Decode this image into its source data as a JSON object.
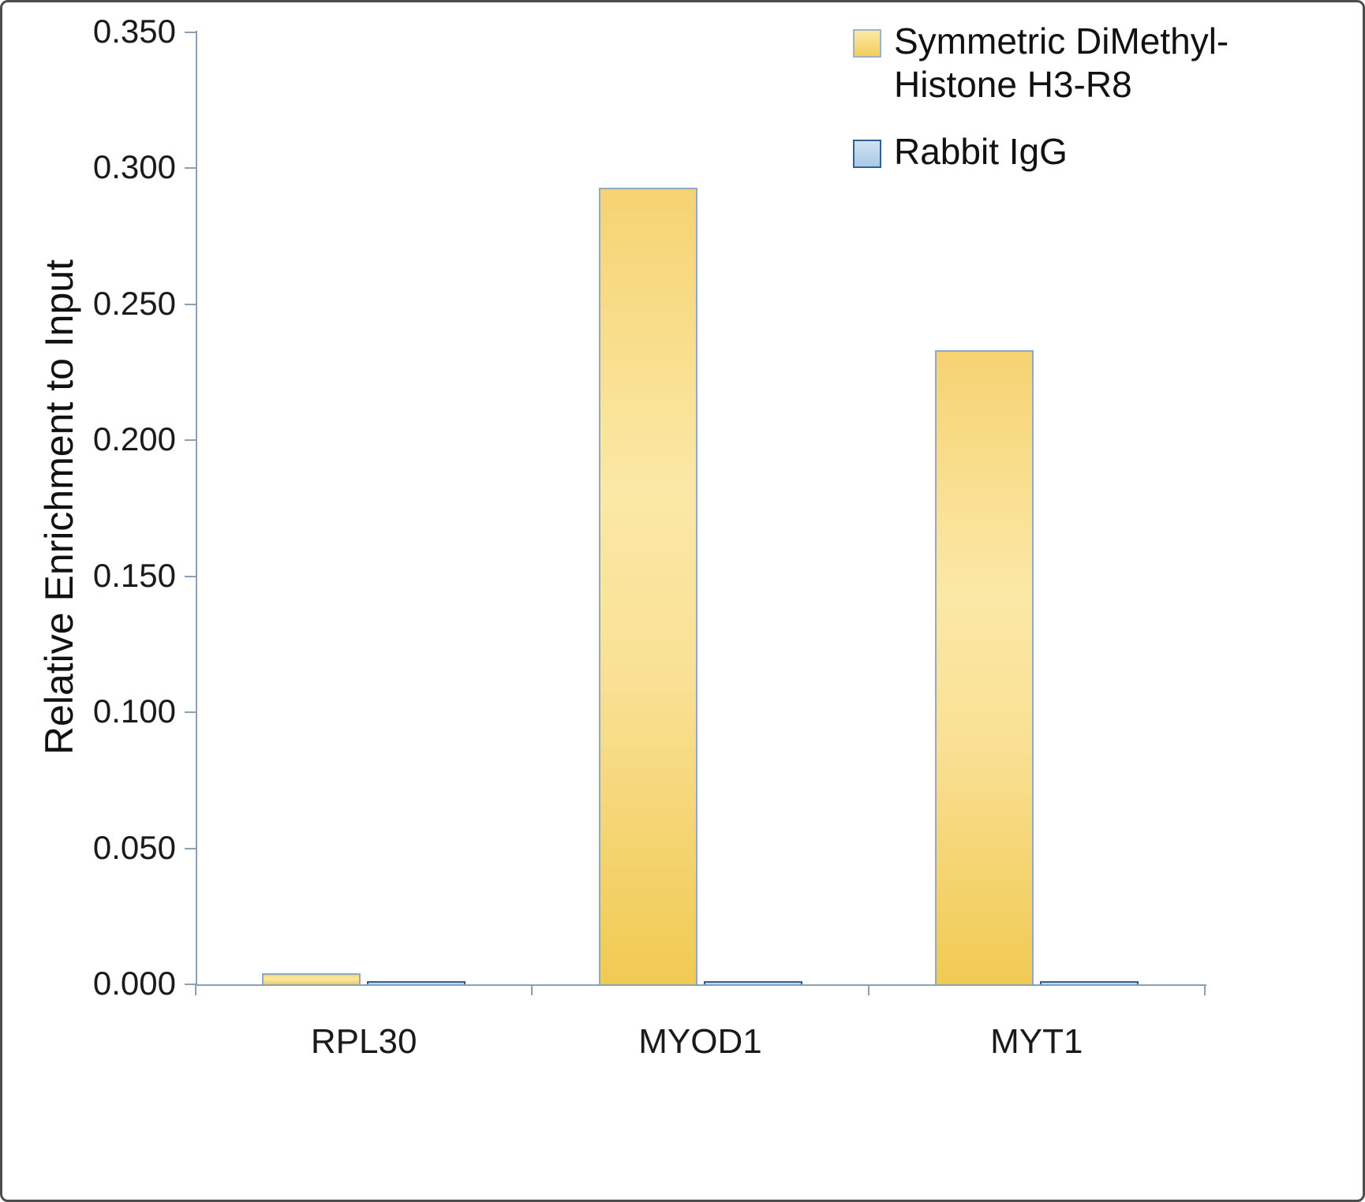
{
  "chart_data": {
    "type": "bar",
    "title": "",
    "xlabel": "",
    "ylabel": "Relative Enrichment to Input",
    "categories": [
      "RPL30",
      "MYOD1",
      "MYT1"
    ],
    "series": [
      {
        "name": "Symmetric DiMethyl-Histone H3-R8",
        "color": "#f8d96d",
        "values": [
          0.004,
          0.293,
          0.233
        ]
      },
      {
        "name": "Rabbit IgG",
        "color": "#bdd7ee",
        "values": [
          0.001,
          0.001,
          0.001
        ]
      }
    ],
    "ylim": [
      0,
      0.35
    ],
    "ytick_interval": 0.05,
    "ytick_labels": [
      "0.000",
      "0.050",
      "0.100",
      "0.150",
      "0.200",
      "0.250",
      "0.300",
      "0.350"
    ],
    "grid": false,
    "legend_position": "top-right"
  },
  "legend": {
    "items": [
      {
        "label_lines": [
          "Symmetric DiMethyl-",
          "Histone H3-R8"
        ]
      },
      {
        "label_lines": [
          "Rabbit IgG"
        ]
      }
    ]
  }
}
